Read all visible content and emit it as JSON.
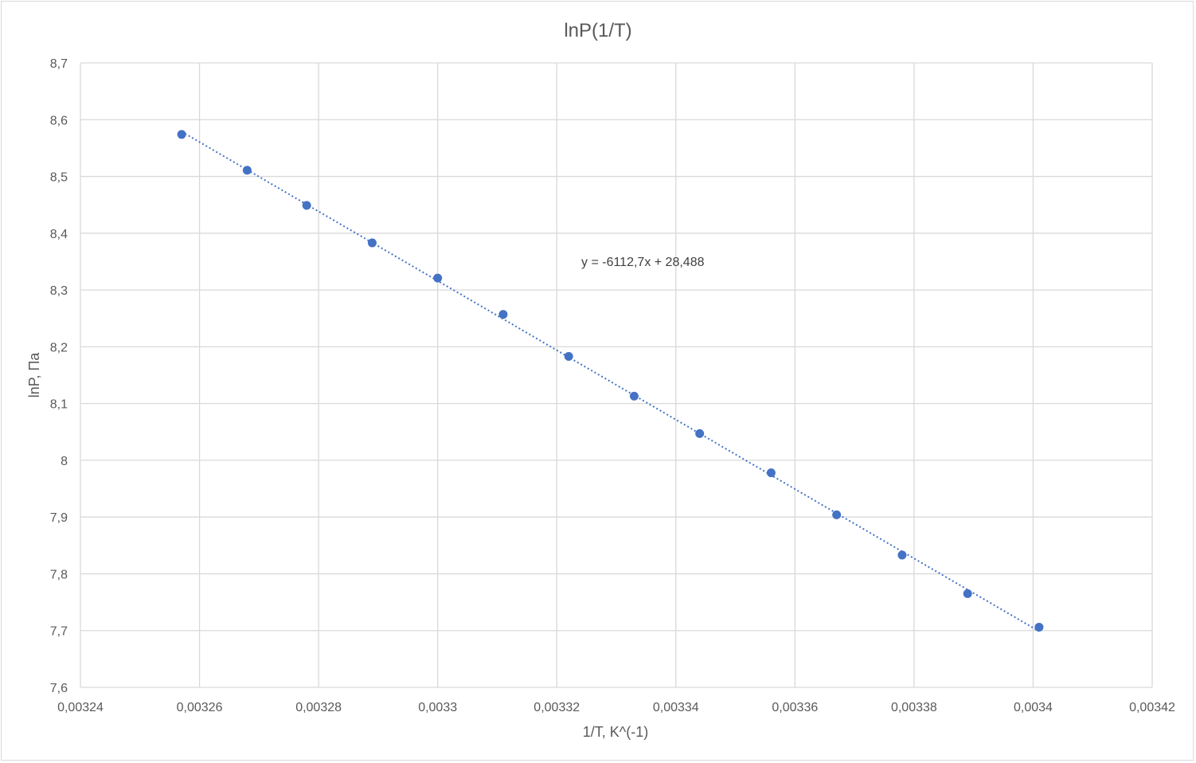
{
  "chart_data": {
    "type": "scatter",
    "title": "lnP(1/T)",
    "xlabel": "1/T, K^(-1)",
    "ylabel": "lnP, Па",
    "xlim": [
      0.00324,
      0.00342
    ],
    "ylim": [
      7.6,
      8.7
    ],
    "x_ticks": [
      0.00324,
      0.00326,
      0.00328,
      0.0033,
      0.00332,
      0.00334,
      0.00336,
      0.00338,
      0.0034,
      0.00342
    ],
    "x_tick_labels": [
      "0,00324",
      "0,00326",
      "0,00328",
      "0,0033",
      "0,00332",
      "0,00334",
      "0,00336",
      "0,00338",
      "0,0034",
      "0,00342"
    ],
    "y_ticks": [
      7.6,
      7.7,
      7.8,
      7.9,
      8.0,
      8.1,
      8.2,
      8.3,
      8.4,
      8.5,
      8.6,
      8.7
    ],
    "y_tick_labels": [
      "7,6",
      "7,7",
      "7,8",
      "7,9",
      "8",
      "8,1",
      "8,2",
      "8,3",
      "8,4",
      "8,5",
      "8,6",
      "8,7"
    ],
    "grid": true,
    "legend": "none",
    "series": [
      {
        "color": "#4472c4",
        "x": [
          0.003257,
          0.003268,
          0.003278,
          0.003289,
          0.0033,
          0.003311,
          0.003322,
          0.003333,
          0.003344,
          0.003356,
          0.003367,
          0.003378,
          0.003389,
          0.003401
        ],
        "y": [
          8.574,
          8.511,
          8.449,
          8.383,
          8.321,
          8.257,
          8.183,
          8.113,
          8.047,
          7.978,
          7.904,
          7.833,
          7.765,
          7.706
        ]
      }
    ],
    "trendline": {
      "type": "linear",
      "slope": -6112.7,
      "intercept": 28.488,
      "x_range": [
        0.003257,
        0.003401
      ],
      "color": "#4472c4",
      "style": "dotted",
      "equation_label": "y = -6112,7x + 28,488"
    }
  }
}
